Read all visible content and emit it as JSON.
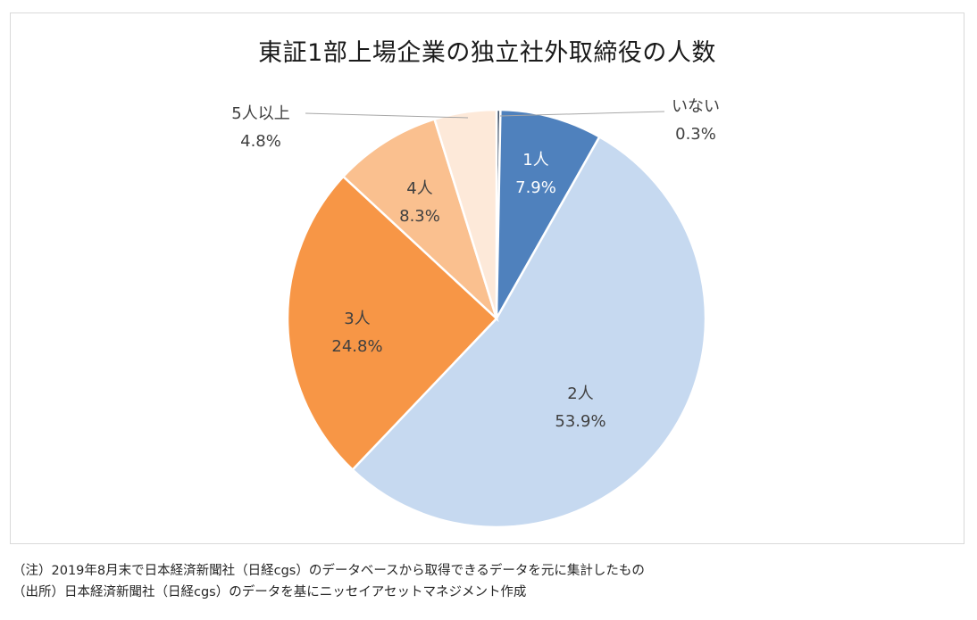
{
  "chart_data": {
    "type": "pie",
    "title": "東証1部上場企業の独立社外取締役の人数",
    "slices": [
      {
        "label": "いない",
        "value": 0.3,
        "value_text": "0.3%",
        "color": "#44546a"
      },
      {
        "label": "1人",
        "value": 7.9,
        "value_text": "7.9%",
        "color": "#4f81bd"
      },
      {
        "label": "2人",
        "value": 53.9,
        "value_text": "53.9%",
        "color": "#c6d9f0"
      },
      {
        "label": "3人",
        "value": 24.8,
        "value_text": "24.8%",
        "color": "#f79646"
      },
      {
        "label": "4人",
        "value": 8.3,
        "value_text": "8.3%",
        "color": "#fac08f"
      },
      {
        "label": "5人以上",
        "value": 4.8,
        "value_text": "4.8%",
        "color": "#fde9d9"
      }
    ],
    "start_angle_deg": 0,
    "direction": "clockwise"
  },
  "footnotes": {
    "note": "（注）2019年8月末で日本経済新聞社（日経cgs）のデータベースから取得できるデータを元に集計したもの",
    "source": "（出所）日本経済新聞社（日経cgs）のデータを基にニッセイアセットマネジメント作成"
  }
}
